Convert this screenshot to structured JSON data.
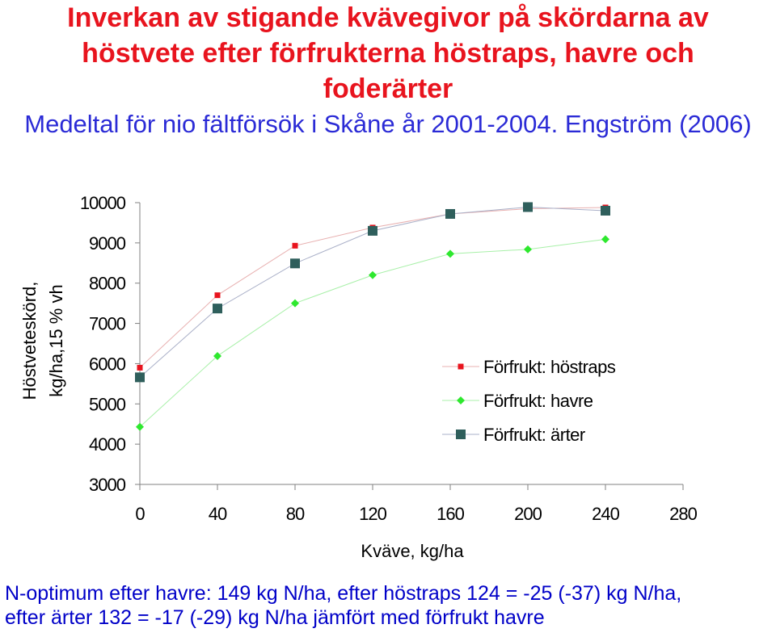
{
  "title_lines": [
    "Inverkan av stigande kvävegivor på skördarna av",
    "höstvete efter förfrukterna höstraps, havre och",
    "foderärter"
  ],
  "subtitle": "Medeltal för nio fältförsök i Skåne år 2001-2004. Engström (2006)",
  "footer_lines": [
    "N-optimum efter havre: 149 kg N/ha, efter höstraps 124 = -25 (-37) kg N/ha,",
    "efter ärter 132 = -17 (-29) kg N/ha jämfört med förfrukt havre"
  ],
  "chart_data": {
    "type": "line",
    "title": "Inverkan av stigande kvävegivor på skördarna av höstvete efter förfrukterna höstraps, havre och foderärter",
    "subtitle": "Medeltal för nio fältförsök i Skåne år 2001-2004. Engström (2006)",
    "xlabel": "Kväve, kg/ha",
    "ylabel_lines": [
      "Höstveteskörd,",
      "kg/ha,15 % vh"
    ],
    "x": [
      0,
      40,
      80,
      120,
      160,
      200,
      240
    ],
    "xlim": [
      0,
      280
    ],
    "ylim": [
      3000,
      10000
    ],
    "xticks": [
      "0",
      "40",
      "80",
      "120",
      "160",
      "200",
      "240",
      "280"
    ],
    "yticks": [
      "3000",
      "4000",
      "5000",
      "6000",
      "7000",
      "8000",
      "9000",
      "10000"
    ],
    "grid": false,
    "legend_position": "right",
    "series": [
      {
        "name": "Förfrukt: höstraps",
        "color": "#e8141e",
        "line_color": "#e8b0b0",
        "marker": "square-small",
        "values": [
          5900,
          7700,
          8930,
          9380,
          9720,
          9850,
          9880
        ]
      },
      {
        "name": "Förfrukt: havre",
        "color": "#2ee82e",
        "line_color": "#a8f0a8",
        "marker": "diamond",
        "values": [
          4430,
          6190,
          7500,
          8200,
          8730,
          8840,
          9090
        ]
      },
      {
        "name": "Förfrukt: ärter",
        "color": "#2f5f5c",
        "line_color": "#aab0c8",
        "marker": "square-large",
        "values": [
          5660,
          7370,
          8490,
          9300,
          9720,
          9890,
          9800
        ]
      }
    ]
  }
}
